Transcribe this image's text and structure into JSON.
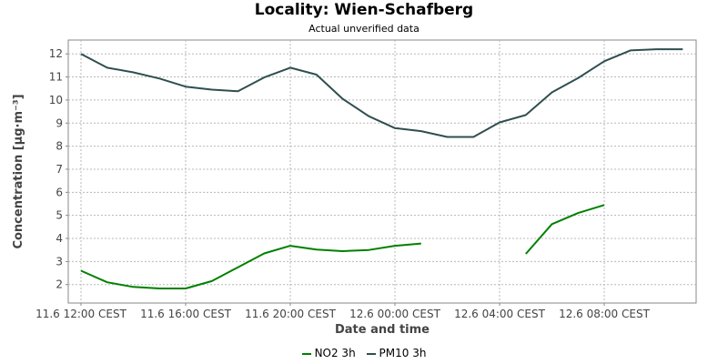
{
  "title": "Locality: Wien-Schafberg",
  "subtitle": "Actual unverified data",
  "chart_data": {
    "type": "line",
    "xlabel": "Date and time",
    "ylabel": "Concentration [µg·m⁻³]",
    "ylim": [
      1.2,
      12.6
    ],
    "yticks": [
      2,
      3,
      4,
      5,
      6,
      7,
      8,
      9,
      10,
      11,
      12
    ],
    "x": [
      "11.6 12:00",
      "11.6 13:00",
      "11.6 14:00",
      "11.6 15:00",
      "11.6 16:00",
      "11.6 17:00",
      "11.6 18:00",
      "11.6 19:00",
      "11.6 20:00",
      "11.6 21:00",
      "11.6 22:00",
      "11.6 23:00",
      "12.6 00:00",
      "12.6 01:00",
      "12.6 02:00",
      "12.6 03:00",
      "12.6 04:00",
      "12.6 05:00",
      "12.6 06:00",
      "12.6 07:00",
      "12.6 08:00",
      "12.6 09:00",
      "12.6 10:00",
      "12.6 11:00"
    ],
    "xticks": [
      {
        "index": 0,
        "label": "11.6 12:00 CEST"
      },
      {
        "index": 4,
        "label": "11.6 16:00 CEST"
      },
      {
        "index": 8,
        "label": "11.6 20:00 CEST"
      },
      {
        "index": 12,
        "label": "12.6 00:00 CEST"
      },
      {
        "index": 16,
        "label": "12.6 04:00 CEST"
      },
      {
        "index": 20,
        "label": "12.6 08:00 CEST"
      }
    ],
    "series": [
      {
        "name": "NO2 3h",
        "color": "#008000",
        "values": [
          2.6,
          2.1,
          1.9,
          1.83,
          1.83,
          2.15,
          2.75,
          3.35,
          3.68,
          3.52,
          3.45,
          3.5,
          3.68,
          3.78,
          null,
          null,
          null,
          3.33,
          4.62,
          5.1,
          5.45,
          null,
          null,
          null
        ]
      },
      {
        "name": "PM10 3h",
        "color": "#2f4f4f",
        "values": [
          12.0,
          11.4,
          11.2,
          10.93,
          10.58,
          10.45,
          10.38,
          10.98,
          11.4,
          11.1,
          10.05,
          9.3,
          8.78,
          8.65,
          8.4,
          8.4,
          9.03,
          9.35,
          10.33,
          10.95,
          11.68,
          12.15,
          12.2,
          12.2
        ]
      }
    ],
    "grid": true,
    "legend_position": "bottom"
  }
}
